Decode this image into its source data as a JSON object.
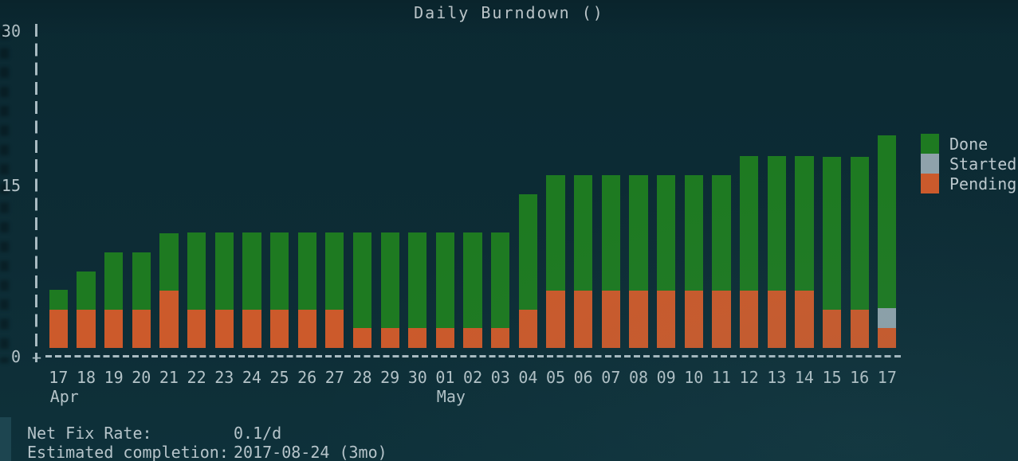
{
  "title": "Daily Burndown ()",
  "legend": [
    {
      "label": "Done",
      "color": "#1e7a21"
    },
    {
      "label": "Started",
      "color": "#8fa2ab"
    },
    {
      "label": "Pending",
      "color": "#cc5a2b"
    }
  ],
  "footer": {
    "net_fix_rate_label": "Net Fix Rate:",
    "net_fix_rate_value": "0.1/d",
    "completion_label": "Estimated completion:",
    "completion_value": "2017-08-24 (3mo)"
  },
  "chart_data": {
    "type": "bar",
    "stacked": true,
    "title": "Daily Burndown ()",
    "ylabel": "",
    "xlabel": "",
    "ylim": [
      0,
      30
    ],
    "yticks": [
      0,
      15,
      30
    ],
    "grid": false,
    "legend_position": "right",
    "x_axis": {
      "origin_glyph": "+",
      "categories": [
        "17",
        "18",
        "19",
        "20",
        "21",
        "22",
        "23",
        "24",
        "25",
        "26",
        "27",
        "28",
        "29",
        "30",
        "01",
        "02",
        "03",
        "04",
        "05",
        "06",
        "07",
        "08",
        "09",
        "10",
        "11",
        "12",
        "13",
        "14",
        "15",
        "16",
        "17"
      ],
      "month_labels": [
        {
          "text": "Apr",
          "index": 0
        },
        {
          "text": "May",
          "index": 14
        }
      ]
    },
    "series": [
      {
        "name": "Pending",
        "color": "#cc5a2b",
        "values": [
          3.5,
          3.5,
          3.5,
          3.5,
          5.3,
          3.5,
          3.5,
          3.5,
          3.5,
          3.5,
          3.5,
          1.8,
          1.8,
          1.8,
          1.8,
          1.8,
          1.8,
          3.5,
          5.3,
          5.3,
          5.3,
          5.3,
          5.3,
          5.3,
          5.3,
          5.3,
          5.3,
          5.3,
          3.5,
          3.5,
          1.8
        ]
      },
      {
        "name": "Started",
        "color": "#8fa2ab",
        "values": [
          0,
          0,
          0,
          0,
          0,
          0,
          0,
          0,
          0,
          0,
          0,
          0,
          0,
          0,
          0,
          0,
          0,
          0,
          0,
          0,
          0,
          0,
          0,
          0,
          0,
          0,
          0,
          0,
          0,
          0,
          1.8
        ]
      },
      {
        "name": "Done",
        "color": "#1e7a21",
        "values": [
          1.8,
          3.5,
          5.3,
          5.3,
          5.3,
          7.1,
          7.1,
          7.1,
          7.1,
          7.1,
          7.1,
          8.8,
          8.8,
          8.8,
          8.8,
          8.8,
          8.8,
          10.6,
          10.6,
          10.6,
          10.6,
          10.6,
          10.6,
          10.6,
          10.6,
          12.4,
          12.4,
          12.4,
          14.1,
          14.1,
          15.9
        ]
      }
    ]
  }
}
